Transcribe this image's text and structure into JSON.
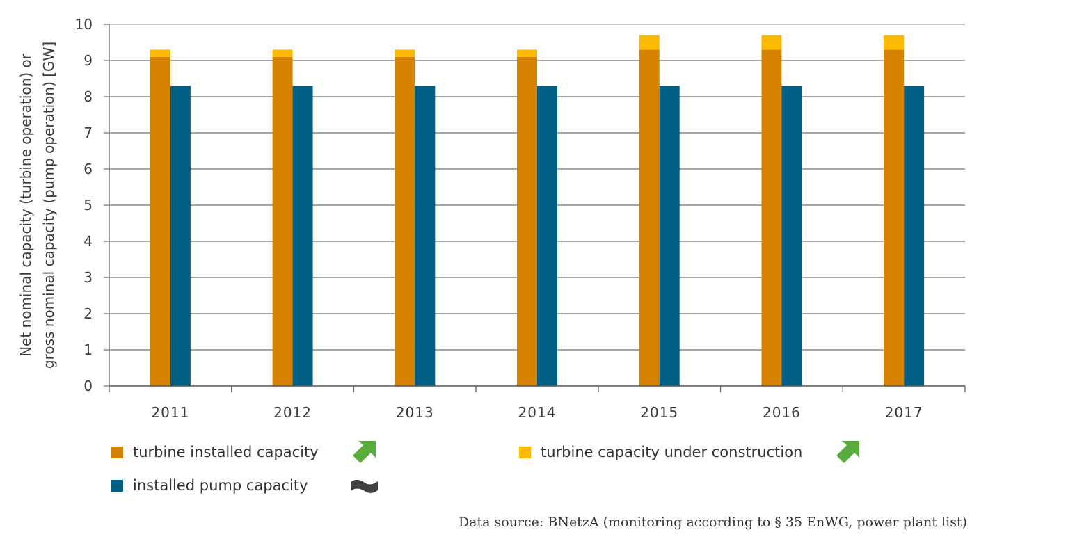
{
  "chart_data": {
    "type": "bar",
    "title": "",
    "xlabel": "",
    "ylabel_lines": [
      "Net nominal capacity (turbine operation) or",
      "gross nominal capacity (pump operation) [GW]"
    ],
    "ylim": [
      0,
      10
    ],
    "yticks": [
      "0",
      "1",
      "2",
      "3",
      "4",
      "5",
      "6",
      "7",
      "8",
      "9",
      "10"
    ],
    "grid": true,
    "categories": [
      "2011",
      "2012",
      "2013",
      "2014",
      "2015",
      "2016",
      "2017"
    ],
    "series": [
      {
        "name": "turbine installed capacity",
        "color": "#d58200",
        "stack": "turbine",
        "values": [
          9.1,
          9.1,
          9.1,
          9.1,
          9.3,
          9.3,
          9.3
        ]
      },
      {
        "name": "turbine capacity under construction",
        "color": "#fbb900",
        "stack": "turbine",
        "values": [
          0.2,
          0.2,
          0.2,
          0.2,
          0.4,
          0.4,
          0.4
        ]
      },
      {
        "name": "installed pump capacity",
        "color": "#005f85",
        "stack": "pump",
        "values": [
          8.3,
          8.3,
          8.3,
          8.3,
          8.3,
          8.3,
          8.3
        ]
      }
    ]
  },
  "legend": [
    {
      "label": "turbine installed capacity",
      "color": "#d58200",
      "trend_icon": "arrow-up-right-icon",
      "trend_color": "#5aad3c"
    },
    {
      "label": "turbine capacity under construction",
      "color": "#fbb900",
      "trend_icon": "arrow-up-right-icon",
      "trend_color": "#5aad3c"
    },
    {
      "label": "installed pump capacity",
      "color": "#005f85",
      "trend_icon": "tilde-wave-icon",
      "trend_color": "#404040"
    }
  ],
  "source": "Data source: BNetzA (monitoring according to § 35 EnWG, power plant list)"
}
